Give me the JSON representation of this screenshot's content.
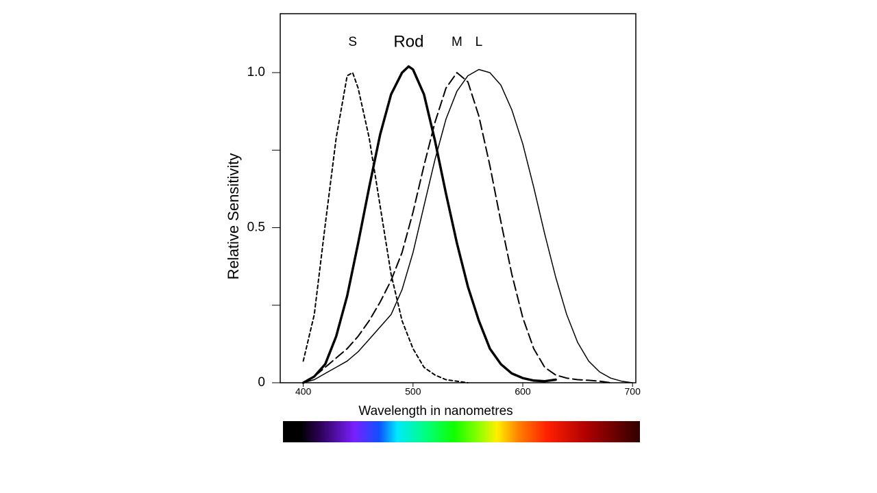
{
  "chart_data": {
    "type": "line",
    "x_label": "Wavelength in nanometres",
    "y_label": "Relative Sensitivity",
    "xlim": [
      379,
      703
    ],
    "ylim": [
      0,
      1.19
    ],
    "xticks": [
      400,
      500,
      600,
      700
    ],
    "yticks": [
      0,
      0.25,
      {
        "value": 0.5,
        "label": "0.5"
      },
      0.75,
      {
        "value": 1,
        "label": "1.0"
      }
    ],
    "yticks_unlabeled": [
      0.25,
      0.75
    ],
    "grid": false,
    "series": [
      {
        "name": "S",
        "color": "#000000",
        "dash": "short",
        "width": 2,
        "x": [
          400,
          410,
          420,
          430,
          440,
          445,
          450,
          460,
          470,
          480,
          490,
          500,
          510,
          520,
          530,
          540,
          550
        ],
        "values": [
          0.07,
          0.22,
          0.51,
          0.79,
          0.99,
          1.0,
          0.95,
          0.79,
          0.57,
          0.35,
          0.2,
          0.11,
          0.05,
          0.025,
          0.01,
          0.005,
          0
        ]
      },
      {
        "name": "Rod",
        "color": "#000000",
        "dash": "solid",
        "width": 3.5,
        "x": [
          400,
          410,
          420,
          430,
          440,
          450,
          460,
          470,
          480,
          490,
          496,
          500,
          510,
          520,
          530,
          540,
          550,
          560,
          570,
          580,
          590,
          600,
          610,
          620,
          630
        ],
        "values": [
          0,
          0.02,
          0.06,
          0.15,
          0.28,
          0.45,
          0.63,
          0.8,
          0.93,
          1.0,
          1.02,
          1.01,
          0.93,
          0.78,
          0.61,
          0.45,
          0.31,
          0.2,
          0.11,
          0.06,
          0.03,
          0.015,
          0.007,
          0.005,
          0.01
        ]
      },
      {
        "name": "M",
        "color": "#000000",
        "dash": "long",
        "width": 2,
        "x": [
          400,
          410,
          420,
          430,
          440,
          450,
          460,
          470,
          480,
          490,
          500,
          510,
          520,
          530,
          540,
          550,
          560,
          570,
          580,
          590,
          600,
          610,
          620,
          630,
          640,
          650,
          660,
          670,
          680
        ],
        "values": [
          0,
          0.02,
          0.05,
          0.08,
          0.11,
          0.15,
          0.2,
          0.26,
          0.33,
          0.42,
          0.55,
          0.7,
          0.84,
          0.95,
          1.0,
          0.97,
          0.86,
          0.7,
          0.52,
          0.35,
          0.21,
          0.11,
          0.05,
          0.025,
          0.015,
          0.01,
          0.008,
          0.005,
          0
        ]
      },
      {
        "name": "L",
        "color": "#000000",
        "dash": "solid",
        "width": 1.5,
        "x": [
          400,
          410,
          420,
          430,
          440,
          450,
          460,
          470,
          480,
          490,
          500,
          510,
          520,
          530,
          540,
          550,
          560,
          570,
          580,
          590,
          600,
          610,
          620,
          630,
          640,
          650,
          660,
          670,
          680,
          690,
          700
        ],
        "values": [
          0,
          0.01,
          0.03,
          0.05,
          0.07,
          0.1,
          0.14,
          0.18,
          0.22,
          0.3,
          0.42,
          0.57,
          0.72,
          0.85,
          0.94,
          0.99,
          1.01,
          1.0,
          0.96,
          0.88,
          0.77,
          0.63,
          0.48,
          0.34,
          0.22,
          0.13,
          0.07,
          0.035,
          0.015,
          0.005,
          0
        ]
      }
    ]
  }
}
